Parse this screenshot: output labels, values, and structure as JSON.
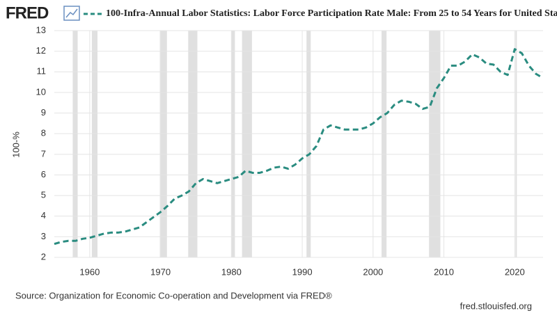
{
  "chart_data": {
    "type": "line",
    "logo": "FRED",
    "title": "100-Infra-Annual Labor Statistics: Labor Force Participation Rate Male: From 25 to 54 Years for United Sta",
    "y_label": "100-%",
    "source": "Source: Organization for Economic Co-operation and Development via FRED®",
    "site": "fred.stlouisfed.org",
    "x": [
      1955,
      1956,
      1957,
      1958,
      1959,
      1960,
      1961,
      1962,
      1963,
      1964,
      1965,
      1966,
      1967,
      1968,
      1969,
      1970,
      1971,
      1972,
      1973,
      1974,
      1975,
      1976,
      1977,
      1978,
      1979,
      1980,
      1981,
      1982,
      1983,
      1984,
      1985,
      1986,
      1987,
      1988,
      1989,
      1990,
      1991,
      1992,
      1993,
      1994,
      1995,
      1996,
      1997,
      1998,
      1999,
      2000,
      2001,
      2002,
      2003,
      2004,
      2005,
      2006,
      2007,
      2008,
      2009,
      2010,
      2011,
      2012,
      2013,
      2014,
      2015,
      2016,
      2017,
      2018,
      2019,
      2020,
      2021,
      2022,
      2023,
      2024
    ],
    "series": [
      {
        "name": "100-Infra-Annual Labor Statistics: Labor Force Participation Rate Male: From 25 to 54 Years for United Sta",
        "color": "#2a8c80",
        "values": [
          2.65,
          2.75,
          2.8,
          2.8,
          2.9,
          2.95,
          3.05,
          3.15,
          3.2,
          3.2,
          3.25,
          3.35,
          3.45,
          3.7,
          3.95,
          4.2,
          4.5,
          4.85,
          5.0,
          5.2,
          5.6,
          5.8,
          5.7,
          5.6,
          5.7,
          5.8,
          5.9,
          6.2,
          6.1,
          6.1,
          6.2,
          6.35,
          6.4,
          6.3,
          6.5,
          6.8,
          7.0,
          7.4,
          8.2,
          8.4,
          8.3,
          8.2,
          8.2,
          8.2,
          8.3,
          8.5,
          8.8,
          9.0,
          9.4,
          9.6,
          9.55,
          9.45,
          9.2,
          9.3,
          10.2,
          10.7,
          11.3,
          11.3,
          11.5,
          11.85,
          11.7,
          11.4,
          11.35,
          11.0,
          10.85,
          12.1,
          11.9,
          11.3,
          10.9,
          10.7
        ]
      }
    ],
    "xlim": [
      1955,
      2024
    ],
    "xticks": [
      1960,
      1970,
      1980,
      1990,
      2000,
      2010,
      2020
    ],
    "ylim": [
      2,
      13
    ],
    "yticks": [
      2,
      3,
      4,
      5,
      6,
      7,
      8,
      9,
      10,
      11,
      12,
      13
    ],
    "grid": true,
    "shaded_periods": [
      [
        1957.6,
        1958.3
      ],
      [
        1960.3,
        1961.1
      ],
      [
        1969.9,
        1970.9
      ],
      [
        1973.9,
        1975.2
      ],
      [
        1980.0,
        1980.5
      ],
      [
        1981.5,
        1982.9
      ],
      [
        1990.6,
        1991.2
      ],
      [
        2001.2,
        2001.9
      ],
      [
        2007.9,
        2009.5
      ],
      [
        2020.1,
        2020.3
      ]
    ],
    "shade_color": "#e0e0e0"
  }
}
